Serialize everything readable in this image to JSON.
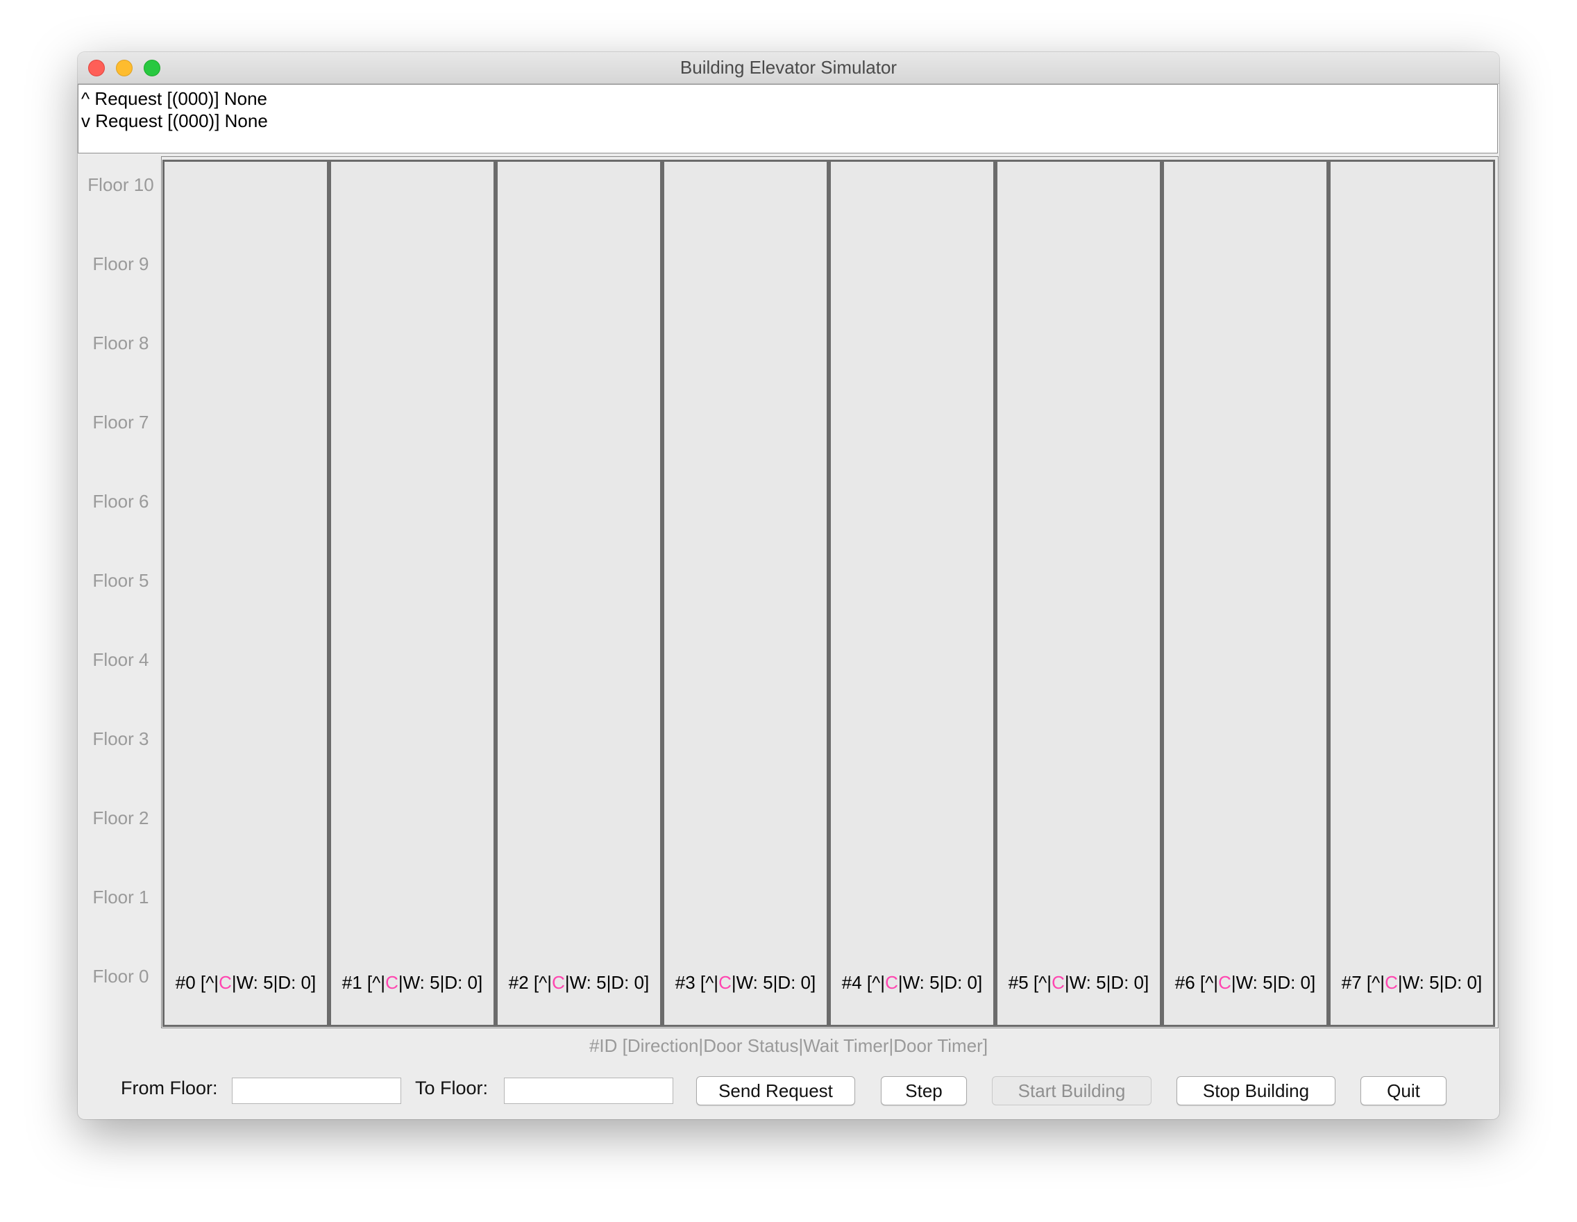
{
  "window": {
    "title": "Building Elevator Simulator"
  },
  "requests": {
    "up": "^ Request [(000)] None",
    "down": "v Request [(000)] None"
  },
  "floors": [
    "Floor 10",
    "Floor 9",
    "Floor 8",
    "Floor 7",
    "Floor 6",
    "Floor 5",
    "Floor 4",
    "Floor 3",
    "Floor 2",
    "Floor 1",
    "Floor 0"
  ],
  "elevators": [
    {
      "prefix": "#0 [^|",
      "door": "C",
      "suffix": "|W: 5|D: 0]"
    },
    {
      "prefix": "#1 [^|",
      "door": "C",
      "suffix": "|W: 5|D: 0]"
    },
    {
      "prefix": "#2 [^|",
      "door": "C",
      "suffix": "|W: 5|D: 0]"
    },
    {
      "prefix": "#3 [^|",
      "door": "C",
      "suffix": "|W: 5|D: 0]"
    },
    {
      "prefix": "#4 [^|",
      "door": "C",
      "suffix": "|W: 5|D: 0]"
    },
    {
      "prefix": "#5 [^|",
      "door": "C",
      "suffix": "|W: 5|D: 0]"
    },
    {
      "prefix": "#6 [^|",
      "door": "C",
      "suffix": "|W: 5|D: 0]"
    },
    {
      "prefix": "#7 [^|",
      "door": "C",
      "suffix": "|W: 5|D: 0]"
    }
  ],
  "legend": "#ID [Direction|Door Status|Wait Timer|Door Timer]",
  "controls": {
    "from_floor_label": "From Floor:",
    "from_floor_value": "",
    "to_floor_label": "To Floor:",
    "to_floor_value": "",
    "send_request": "Send Request",
    "step": "Step",
    "start_building": "Start Building",
    "stop_building": "Stop Building",
    "quit": "Quit"
  },
  "colors": {
    "door_status": "#ff45b0",
    "shaft_border": "#6b6b6b",
    "floor_label": "#9a9a9a"
  }
}
